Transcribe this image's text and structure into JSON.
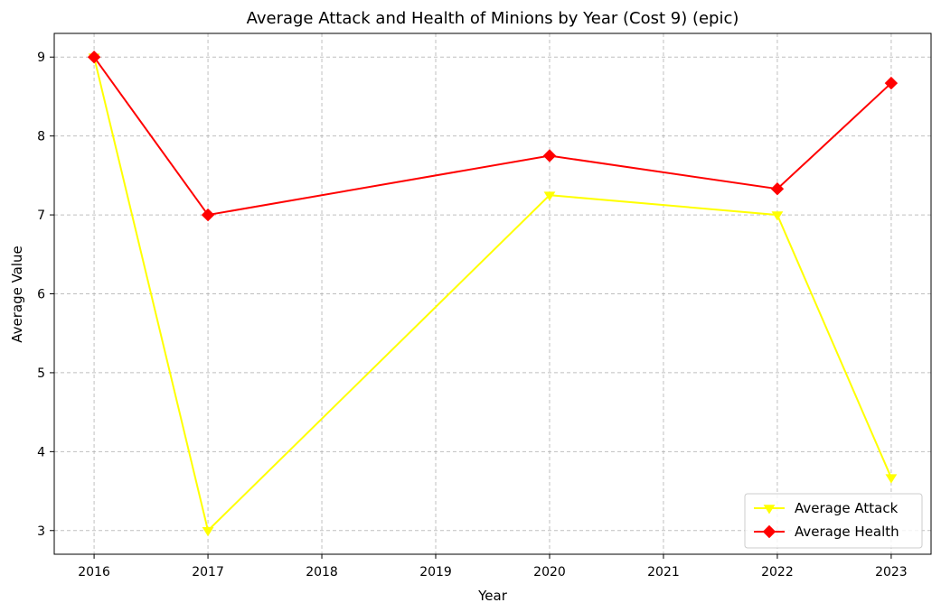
{
  "chart_data": {
    "type": "line",
    "title": "Average Attack and Health of Minions by Year (Cost 9) (epic)",
    "xlabel": "Year",
    "ylabel": "Average Value",
    "x": [
      2016,
      2017,
      2020,
      2022,
      2023
    ],
    "xticks": [
      "2016",
      "2017",
      "2018",
      "2019",
      "2020",
      "2021",
      "2022",
      "2023"
    ],
    "yticks": [
      "3",
      "4",
      "5",
      "6",
      "7",
      "8",
      "9"
    ],
    "xlim": [
      2015.65,
      2023.35
    ],
    "ylim": [
      2.7,
      9.3
    ],
    "grid": true,
    "legend_position": "lower-right",
    "series": [
      {
        "name": "Average Attack",
        "color": "#ffff00",
        "marker": "triangle-down",
        "values": [
          9.0,
          3.0,
          7.25,
          7.0,
          3.67
        ]
      },
      {
        "name": "Average Health",
        "color": "#ff0000",
        "marker": "diamond",
        "values": [
          9.0,
          7.0,
          7.75,
          7.33,
          8.67
        ]
      }
    ]
  }
}
